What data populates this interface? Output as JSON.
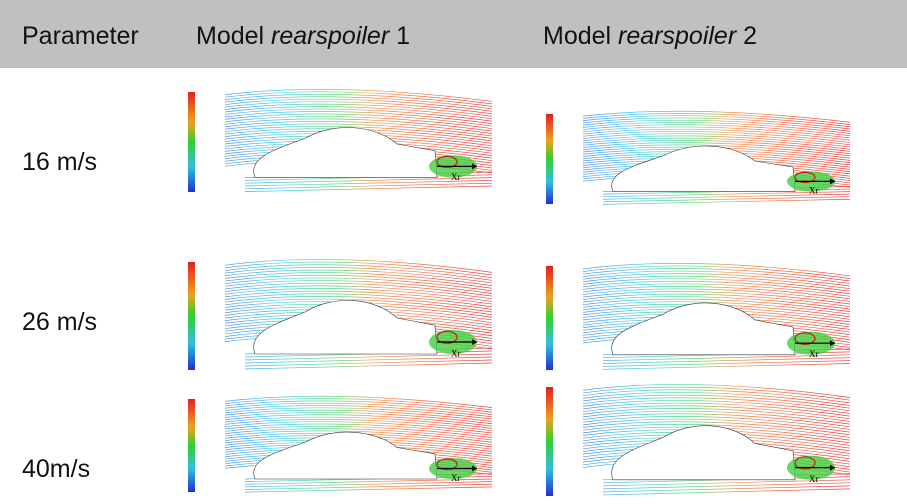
{
  "header": {
    "parameter": "Parameter",
    "models": [
      {
        "prefix": "Model",
        "name": "rearspoiler",
        "suffix": "1"
      },
      {
        "prefix": "Model",
        "name": "rearspoiler",
        "suffix": "2"
      }
    ]
  },
  "rows": [
    {
      "label": "16 m/s"
    },
    {
      "label": "26 m/s"
    },
    {
      "label": "40m/s"
    }
  ],
  "reattachment_label": "Xr"
}
